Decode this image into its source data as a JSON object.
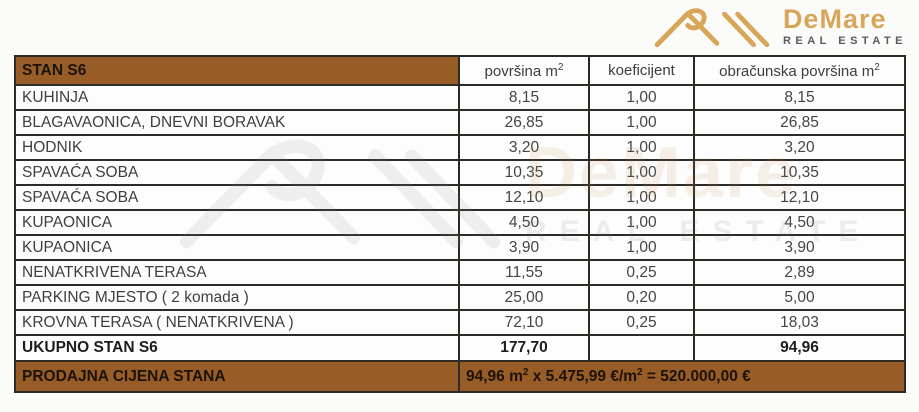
{
  "logo": {
    "brand": "DeMare",
    "subtitle": "REAL ESTATE"
  },
  "table": {
    "title": "STAN S6",
    "columns": [
      {
        "label": "površina m",
        "sup": "2"
      },
      {
        "label": "koeficijent",
        "sup": ""
      },
      {
        "label": "obračunska površina m",
        "sup": "2"
      }
    ],
    "rows": [
      {
        "name": "KUHINJA",
        "area": "8,15",
        "coef": "1,00",
        "calc": "8,15"
      },
      {
        "name": "BLAGAVAONICA, DNEVNI BORAVAK",
        "area": "26,85",
        "coef": "1,00",
        "calc": "26,85"
      },
      {
        "name": "HODNIK",
        "area": "3,20",
        "coef": "1,00",
        "calc": "3,20"
      },
      {
        "name": "SPAVAĆA SOBA",
        "area": "10,35",
        "coef": "1,00",
        "calc": "10,35"
      },
      {
        "name": "SPAVAĆA SOBA",
        "area": "12,10",
        "coef": "1,00",
        "calc": "12,10"
      },
      {
        "name": "KUPAONICA",
        "area": "4,50",
        "coef": "1,00",
        "calc": "4,50"
      },
      {
        "name": "KUPAONICA",
        "area": "3,90",
        "coef": "1,00",
        "calc": "3,90"
      },
      {
        "name": "NENATKRIVENA TERASA",
        "area": "11,55",
        "coef": "0,25",
        "calc": "2,89"
      },
      {
        "name": "PARKING MJESTO ( 2 komada )",
        "area": "25,00",
        "coef": "0,20",
        "calc": "5,00"
      },
      {
        "name": "KROVNA TERASA ( NENATKRIVENA )",
        "area": "72,10",
        "coef": "0,25",
        "calc": "18,03"
      }
    ],
    "total": {
      "label": "UKUPNO STAN S6",
      "area": "177,70",
      "coef": "",
      "calc": "94,96"
    },
    "price": {
      "label": "PRODAJNA CIJENA STANA",
      "formula": [
        {
          "t": "94,96 m",
          "sup": "2"
        },
        {
          "t": " x 5.475,99 €/m",
          "sup": "2"
        },
        {
          "t": " = 520.000,00 €",
          "sup": ""
        }
      ]
    }
  },
  "colors": {
    "brown": "#985d26",
    "gold": "#d8a659",
    "border": "#2e2a26"
  }
}
